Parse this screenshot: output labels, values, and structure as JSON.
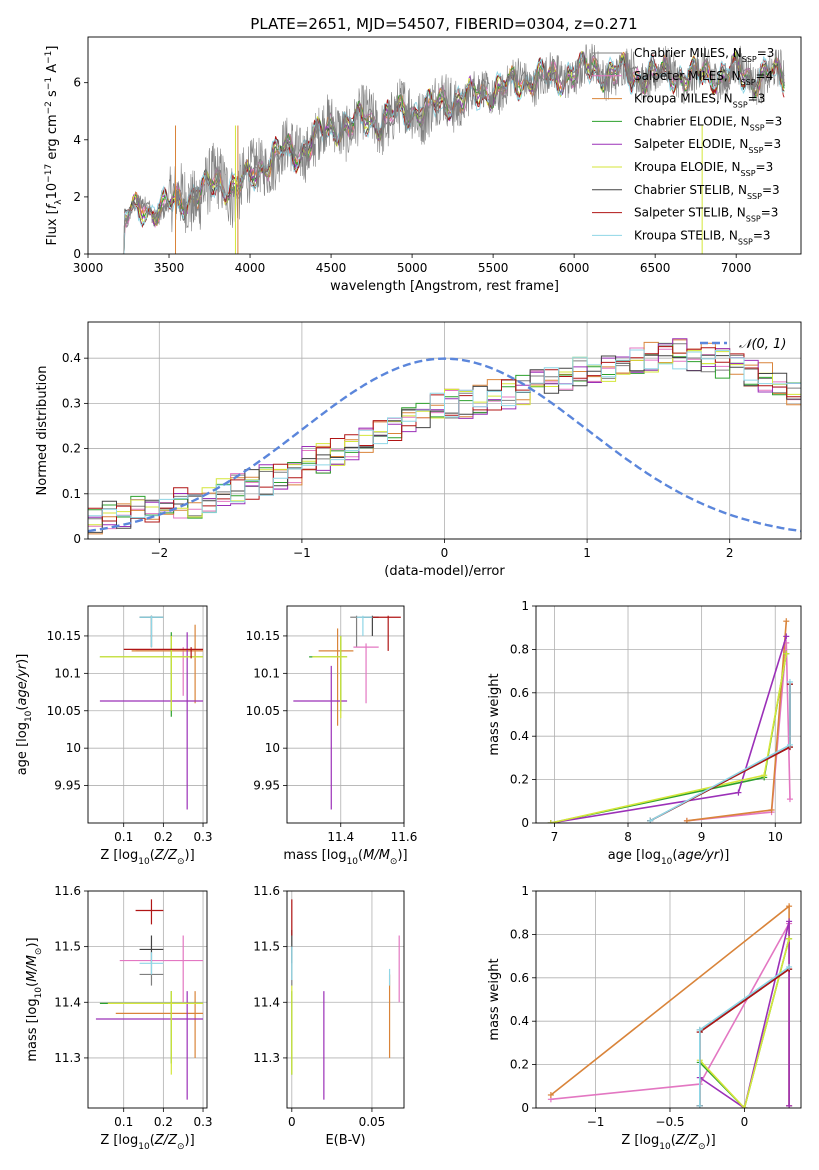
{
  "figure_title": "PLATE=2651, MJD=54507, FIBERID=0304, z=0.271",
  "colors": {
    "Chabrier MILES": "#7f7f7f",
    "Salpeter MILES": "#e377c2",
    "Kroupa MILES": "#d9843a",
    "Chabrier ELODIE": "#2ca02c",
    "Salpeter ELODIE": "#9b30b8",
    "Kroupa ELODIE": "#d4e63a",
    "Chabrier STELIB": "#444444",
    "Salpeter STELIB": "#b01515",
    "Kroupa STELIB": "#8fd6e6",
    "gaussian": "#5b86db"
  },
  "chart_data": [
    {
      "id": "spectrum",
      "type": "line",
      "xlabel": "wavelength [Angstrom, rest frame]",
      "ylabel": "Flux [f_λ 10^-17 erg cm^-2 s^-1 A^-1]",
      "xlim": [
        3000,
        7400
      ],
      "ylim": [
        0,
        7.6
      ],
      "xticks": [
        3000,
        3500,
        4000,
        4500,
        5000,
        5500,
        6000,
        6500,
        7000
      ],
      "yticks": [
        0,
        2,
        4,
        6
      ],
      "grid": false,
      "legend_position": "right",
      "legend": [
        {
          "name": "Chabrier MILES",
          "nssp": "3"
        },
        {
          "name": "Salpeter MILES",
          "nssp": "4"
        },
        {
          "name": "Kroupa MILES",
          "nssp": "3"
        },
        {
          "name": "Chabrier ELODIE",
          "nssp": "3"
        },
        {
          "name": "Salpeter ELODIE",
          "nssp": "3"
        },
        {
          "name": "Kroupa ELODIE",
          "nssp": "3"
        },
        {
          "name": "Chabrier STELIB",
          "nssp": "3"
        },
        {
          "name": "Salpeter STELIB",
          "nssp": "3"
        },
        {
          "name": "Kroupa STELIB",
          "nssp": "3"
        }
      ],
      "data_wavelength_range": [
        3210,
        7300
      ],
      "continuum_x": [
        3210,
        3250,
        3300,
        3350,
        3400,
        3500,
        3600,
        3700,
        3800,
        3900,
        4000,
        4100,
        4200,
        4300,
        4400,
        4500,
        4600,
        4700,
        4800,
        4900,
        5000,
        5100,
        5200,
        5300,
        5400,
        5500,
        5600,
        5700,
        5800,
        5900,
        6000,
        6100,
        6200,
        6300,
        6400,
        6500,
        6600,
        6700,
        6800,
        6900,
        7000,
        7100,
        7200,
        7300
      ],
      "continuum_y": [
        1.0,
        1.4,
        1.5,
        1.6,
        1.55,
        1.7,
        1.9,
        2.2,
        2.5,
        2.3,
        2.7,
        3.2,
        3.6,
        3.5,
        4.1,
        4.4,
        4.5,
        4.7,
        4.6,
        4.9,
        5.0,
        5.1,
        5.3,
        5.4,
        5.6,
        5.7,
        5.9,
        6.1,
        6.2,
        6.1,
        6.4,
        6.5,
        6.3,
        6.4,
        6.2,
        6.3,
        6.3,
        6.2,
        6.3,
        6.2,
        6.4,
        6.1,
        6.3,
        6.2
      ]
    },
    {
      "id": "residuals",
      "type": "step",
      "xlabel": "(data-model)/error",
      "ylabel": "Normed distribution",
      "xlim": [
        -2.5,
        2.5
      ],
      "ylim": [
        0,
        0.48
      ],
      "xticks": [
        -2,
        -1,
        0,
        1,
        2
      ],
      "yticks": [
        0.0,
        0.1,
        0.2,
        0.3,
        0.4
      ],
      "grid": true,
      "legend_position": "top-right",
      "gaussian_label": "𝒩(0, 1)",
      "bin_edges_start": -2.5,
      "bin_width": 0.1,
      "base_hist": [
        0.04,
        0.05,
        0.05,
        0.06,
        0.06,
        0.07,
        0.08,
        0.08,
        0.09,
        0.1,
        0.11,
        0.12,
        0.13,
        0.14,
        0.15,
        0.17,
        0.18,
        0.19,
        0.21,
        0.22,
        0.24,
        0.25,
        0.27,
        0.27,
        0.29,
        0.3,
        0.3,
        0.31,
        0.32,
        0.32,
        0.33,
        0.34,
        0.35,
        0.36,
        0.37,
        0.38,
        0.38,
        0.39,
        0.4,
        0.4,
        0.41,
        0.41,
        0.4,
        0.4,
        0.39,
        0.38,
        0.37,
        0.36,
        0.35,
        0.33,
        0.32,
        0.31,
        0.3,
        0.28,
        0.27,
        0.26,
        0.24,
        0.23,
        0.22,
        0.21,
        0.2,
        0.19,
        0.18,
        0.17,
        0.16,
        0.15,
        0.14,
        0.13,
        0.12,
        0.11,
        0.1,
        0.1,
        0.09,
        0.08,
        0.07,
        0.07,
        0.06,
        0.06,
        0.05,
        0.05
      ]
    },
    {
      "id": "age_vs_Z",
      "type": "errorbar",
      "xlabel": "Z [log10(Z/Z⊙)]",
      "ylabel": "age [log10(age/yr)]",
      "xlim": [
        0.01,
        0.31
      ],
      "ylim": [
        9.9,
        10.19
      ],
      "xticks": [
        0.1,
        0.2,
        0.3
      ],
      "yticks": [
        9.95,
        10.0,
        10.05,
        10.1,
        10.15
      ],
      "grid": true,
      "points": [
        {
          "model": "Chabrier MILES",
          "x": 0.17,
          "xlo": 0.14,
          "xhi": 0.2,
          "y": 10.175,
          "ylo": 10.135,
          "yhi": 10.177
        },
        {
          "model": "Salpeter MILES",
          "x": 0.25,
          "xlo": 0.13,
          "xhi": 0.3,
          "y": 10.13,
          "ylo": 10.07,
          "yhi": 10.135
        },
        {
          "model": "Kroupa MILES",
          "x": 0.28,
          "xlo": 0.12,
          "xhi": 0.3,
          "y": 10.13,
          "ylo": 10.06,
          "yhi": 10.165
        },
        {
          "model": "Chabrier ELODIE",
          "x": 0.22,
          "xlo": 0.04,
          "xhi": 0.3,
          "y": 10.122,
          "ylo": 10.042,
          "yhi": 10.155
        },
        {
          "model": "Salpeter ELODIE",
          "x": 0.26,
          "xlo": 0.04,
          "xhi": 0.3,
          "y": 10.063,
          "ylo": 9.918,
          "yhi": 10.155
        },
        {
          "model": "Kroupa ELODIE",
          "x": 0.22,
          "xlo": 0.04,
          "xhi": 0.3,
          "y": 10.122,
          "ylo": 10.05,
          "yhi": 10.15
        },
        {
          "model": "Chabrier STELIB",
          "x": 0.17,
          "xlo": 0.14,
          "xhi": 0.2,
          "y": 10.175,
          "ylo": 10.135,
          "yhi": 10.177
        },
        {
          "model": "Salpeter STELIB",
          "x": 0.27,
          "xlo": 0.1,
          "xhi": 0.3,
          "y": 10.132,
          "ylo": 10.12,
          "yhi": 10.135
        },
        {
          "model": "Kroupa STELIB",
          "x": 0.17,
          "xlo": 0.14,
          "xhi": 0.2,
          "y": 10.175,
          "ylo": 10.135,
          "yhi": 10.177
        }
      ]
    },
    {
      "id": "age_vs_mass",
      "type": "errorbar",
      "xlabel": "mass [log10(M/M⊙)]",
      "ylabel": "",
      "xlim": [
        11.23,
        11.6
      ],
      "ylim": [
        9.9,
        10.19
      ],
      "xticks": [
        11.4,
        11.6
      ],
      "yticks": [
        9.95,
        10.0,
        10.05,
        10.1,
        10.15
      ],
      "grid": true,
      "points": [
        {
          "model": "Chabrier MILES",
          "x": 11.45,
          "xlo": 11.43,
          "xhi": 11.47,
          "y": 10.175,
          "ylo": 10.135,
          "yhi": 10.177
        },
        {
          "model": "Salpeter MILES",
          "x": 11.48,
          "xlo": 11.44,
          "xhi": 11.52,
          "y": 10.135,
          "ylo": 10.06,
          "yhi": 10.14
        },
        {
          "model": "Kroupa MILES",
          "x": 11.39,
          "xlo": 11.33,
          "xhi": 11.44,
          "y": 10.13,
          "ylo": 10.03,
          "yhi": 10.16
        },
        {
          "model": "Chabrier ELODIE",
          "x": 11.4,
          "xlo": 11.3,
          "xhi": 11.42,
          "y": 10.122,
          "ylo": 10.05,
          "yhi": 10.15
        },
        {
          "model": "Salpeter ELODIE",
          "x": 11.37,
          "xlo": 11.25,
          "xhi": 11.42,
          "y": 10.063,
          "ylo": 9.918,
          "yhi": 10.11
        },
        {
          "model": "Kroupa ELODIE",
          "x": 11.4,
          "xlo": 11.31,
          "xhi": 11.42,
          "y": 10.122,
          "ylo": 10.04,
          "yhi": 10.15
        },
        {
          "model": "Chabrier STELIB",
          "x": 11.5,
          "xlo": 11.47,
          "xhi": 11.52,
          "y": 10.175,
          "ylo": 10.15,
          "yhi": 10.177
        },
        {
          "model": "Salpeter STELIB",
          "x": 11.55,
          "xlo": 11.5,
          "xhi": 11.59,
          "y": 10.175,
          "ylo": 10.13,
          "yhi": 10.177
        },
        {
          "model": "Kroupa STELIB",
          "x": 11.47,
          "xlo": 11.45,
          "xhi": 11.5,
          "y": 10.175,
          "ylo": 10.15,
          "yhi": 10.177
        }
      ]
    },
    {
      "id": "weight_vs_age",
      "type": "line",
      "xlabel": "age [log10(age/yr)]",
      "ylabel": "mass weight",
      "xlim": [
        6.75,
        10.35
      ],
      "ylim": [
        0,
        1.0
      ],
      "xticks": [
        7,
        8,
        9,
        10
      ],
      "yticks": [
        0.0,
        0.2,
        0.4,
        0.6,
        0.8,
        1.0
      ],
      "grid": true,
      "series": [
        {
          "model": "Chabrier MILES",
          "x": [
            8.3,
            10.2,
            10.2
          ],
          "y": [
            0.01,
            0.35,
            0.64
          ]
        },
        {
          "model": "Salpeter MILES",
          "x": [
            8.8,
            9.95,
            10.15,
            10.2
          ],
          "y": [
            0.01,
            0.05,
            0.83,
            0.11
          ]
        },
        {
          "model": "Kroupa MILES",
          "x": [
            8.8,
            9.95,
            10.15
          ],
          "y": [
            0.01,
            0.06,
            0.93
          ]
        },
        {
          "model": "Chabrier ELODIE",
          "x": [
            6.95,
            9.85,
            10.15
          ],
          "y": [
            0.0,
            0.21,
            0.78
          ]
        },
        {
          "model": "Salpeter ELODIE",
          "x": [
            6.95,
            9.5,
            10.15
          ],
          "y": [
            0.0,
            0.14,
            0.86
          ]
        },
        {
          "model": "Kroupa ELODIE",
          "x": [
            6.95,
            9.85,
            10.15
          ],
          "y": [
            0.0,
            0.22,
            0.78
          ]
        },
        {
          "model": "Chabrier STELIB",
          "x": [
            8.3,
            10.2,
            10.2
          ],
          "y": [
            0.01,
            0.35,
            0.64
          ]
        },
        {
          "model": "Salpeter STELIB",
          "x": [
            8.3,
            10.2,
            10.2
          ],
          "y": [
            0.01,
            0.35,
            0.64
          ]
        },
        {
          "model": "Kroupa STELIB",
          "x": [
            8.3,
            10.2,
            10.2
          ],
          "y": [
            0.01,
            0.36,
            0.65
          ]
        }
      ]
    },
    {
      "id": "mass_vs_Z",
      "type": "errorbar",
      "xlabel": "Z [log10(Z/Z⊙)]",
      "ylabel": "mass [log10(M/M⊙)]",
      "xlim": [
        0.01,
        0.31
      ],
      "ylim": [
        11.21,
        11.6
      ],
      "xticks": [
        0.1,
        0.2,
        0.3
      ],
      "yticks": [
        11.3,
        11.4,
        11.5,
        11.6
      ],
      "grid": true,
      "points": [
        {
          "model": "Chabrier MILES",
          "x": 0.17,
          "xlo": 0.14,
          "xhi": 0.2,
          "y": 11.45,
          "ylo": 11.43,
          "yhi": 11.47
        },
        {
          "model": "Salpeter MILES",
          "x": 0.25,
          "xlo": 0.09,
          "xhi": 0.3,
          "y": 11.475,
          "ylo": 11.4,
          "yhi": 11.52
        },
        {
          "model": "Kroupa MILES",
          "x": 0.28,
          "xlo": 0.08,
          "xhi": 0.3,
          "y": 11.38,
          "ylo": 11.3,
          "yhi": 11.42
        },
        {
          "model": "Chabrier ELODIE",
          "x": 0.22,
          "xlo": 0.04,
          "xhi": 0.3,
          "y": 11.398,
          "ylo": 11.29,
          "yhi": 11.42
        },
        {
          "model": "Salpeter ELODIE",
          "x": 0.26,
          "xlo": 0.03,
          "xhi": 0.3,
          "y": 11.37,
          "ylo": 11.225,
          "yhi": 11.42
        },
        {
          "model": "Kroupa ELODIE",
          "x": 0.22,
          "xlo": 0.06,
          "xhi": 0.3,
          "y": 11.398,
          "ylo": 11.27,
          "yhi": 11.42
        },
        {
          "model": "Chabrier STELIB",
          "x": 0.17,
          "xlo": 0.14,
          "xhi": 0.2,
          "y": 11.495,
          "ylo": 11.47,
          "yhi": 11.52
        },
        {
          "model": "Salpeter STELIB",
          "x": 0.17,
          "xlo": 0.13,
          "xhi": 0.2,
          "y": 11.565,
          "ylo": 11.54,
          "yhi": 11.585
        },
        {
          "model": "Kroupa STELIB",
          "x": 0.17,
          "xlo": 0.14,
          "xhi": 0.2,
          "y": 11.47,
          "ylo": 11.45,
          "yhi": 11.49
        }
      ]
    },
    {
      "id": "mass_vs_ebv",
      "type": "errorbar",
      "xlabel": "E(B-V)",
      "ylabel": "",
      "xlim": [
        -0.003,
        0.07
      ],
      "ylim": [
        11.21,
        11.6
      ],
      "xticks": [
        0.0,
        0.05
      ],
      "yticks": [
        11.3,
        11.4,
        11.5,
        11.6
      ],
      "grid": true,
      "points": [
        {
          "model": "Chabrier MILES",
          "x": 0.0,
          "ylo": 11.43,
          "yhi": 11.47
        },
        {
          "model": "Salpeter MILES",
          "x": 0.067,
          "ylo": 11.4,
          "yhi": 11.52
        },
        {
          "model": "Kroupa MILES",
          "x": 0.061,
          "ylo": 11.3,
          "yhi": 11.45
        },
        {
          "model": "Chabrier ELODIE",
          "x": 0.0,
          "ylo": 11.27,
          "yhi": 11.42
        },
        {
          "model": "Salpeter ELODIE",
          "x": 0.02,
          "ylo": 11.225,
          "yhi": 11.42
        },
        {
          "model": "Kroupa ELODIE",
          "x": 0.0,
          "ylo": 11.27,
          "yhi": 11.43
        },
        {
          "model": "Chabrier STELIB",
          "x": 0.0,
          "ylo": 11.47,
          "yhi": 11.53
        },
        {
          "model": "Salpeter STELIB",
          "x": 0.0,
          "ylo": 11.52,
          "yhi": 11.585
        },
        {
          "model": "Kroupa STELIB",
          "x": 0.0,
          "ylo": 11.44,
          "yhi": 11.5
        },
        {
          "model": "Kroupa STELIB",
          "x": 0.061,
          "ylo": 11.43,
          "yhi": 11.46
        }
      ]
    },
    {
      "id": "weight_vs_Z",
      "type": "line",
      "xlabel": "Z [log10(Z/Z⊙)]",
      "ylabel": "mass weight",
      "xlim": [
        -1.4,
        0.38
      ],
      "ylim": [
        0,
        1.0
      ],
      "xticks": [
        -1.0,
        -0.5,
        0.0
      ],
      "yticks": [
        0.0,
        0.2,
        0.4,
        0.6,
        0.8,
        1.0
      ],
      "grid": true,
      "series": [
        {
          "model": "Chabrier MILES",
          "x": [
            -0.3,
            -0.3,
            0.3
          ],
          "y": [
            0.01,
            0.36,
            0.64
          ]
        },
        {
          "model": "Salpeter MILES",
          "x": [
            -1.3,
            -0.3,
            0.3,
            0.3
          ],
          "y": [
            0.04,
            0.11,
            0.85,
            0.01
          ]
        },
        {
          "model": "Kroupa MILES",
          "x": [
            -1.3,
            0.3,
            0.3
          ],
          "y": [
            0.06,
            0.93,
            0.01
          ]
        },
        {
          "model": "Chabrier ELODIE",
          "x": [
            -0.3,
            0.0,
            0.3
          ],
          "y": [
            0.21,
            0.0,
            0.78
          ]
        },
        {
          "model": "Salpeter ELODIE",
          "x": [
            -0.3,
            0.0,
            0.3,
            0.3
          ],
          "y": [
            0.14,
            0.0,
            0.86,
            0.01
          ]
        },
        {
          "model": "Kroupa ELODIE",
          "x": [
            -0.3,
            0.0,
            0.3
          ],
          "y": [
            0.22,
            0.0,
            0.78
          ]
        },
        {
          "model": "Chabrier STELIB",
          "x": [
            -0.3,
            -0.3,
            0.3
          ],
          "y": [
            0.01,
            0.35,
            0.64
          ]
        },
        {
          "model": "Salpeter STELIB",
          "x": [
            -0.3,
            -0.3,
            0.3
          ],
          "y": [
            0.01,
            0.35,
            0.64
          ]
        },
        {
          "model": "Kroupa STELIB",
          "x": [
            -0.3,
            -0.3,
            0.3
          ],
          "y": [
            0.01,
            0.36,
            0.65
          ]
        }
      ]
    }
  ]
}
